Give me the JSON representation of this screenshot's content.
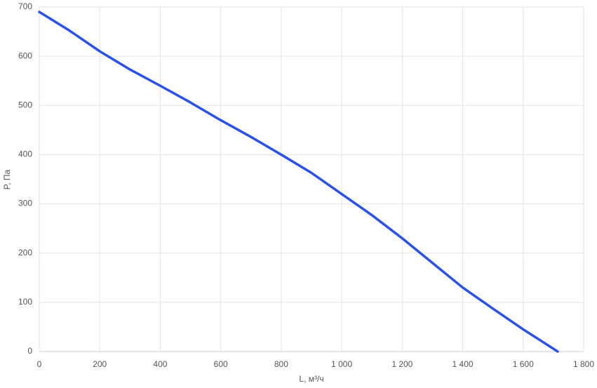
{
  "chart_data": {
    "type": "line",
    "x_label": "L, м³/ч",
    "y_label": "P, Па",
    "x": [
      0,
      100,
      200,
      300,
      400,
      500,
      600,
      700,
      800,
      900,
      1000,
      1100,
      1200,
      1300,
      1400,
      1500,
      1600,
      1714
    ],
    "values": [
      690,
      652,
      610,
      573,
      540,
      506,
      470,
      436,
      400,
      363,
      320,
      277,
      230,
      180,
      130,
      87,
      45,
      0
    ],
    "color": "#2a52e6",
    "xlim": [
      0,
      1800
    ],
    "xticks": [
      0,
      200,
      400,
      600,
      800,
      {
        "value": 1000,
        "label": "1 000"
      },
      {
        "value": 1200,
        "label": "1 200"
      },
      {
        "value": 1400,
        "label": "1 400"
      },
      {
        "value": 1600,
        "label": "1 600"
      },
      {
        "value": 1800,
        "label": "1 800"
      }
    ],
    "ylim": [
      0,
      700
    ],
    "yticks": [
      0,
      100,
      200,
      300,
      400,
      500,
      600,
      700
    ],
    "grid": true
  }
}
